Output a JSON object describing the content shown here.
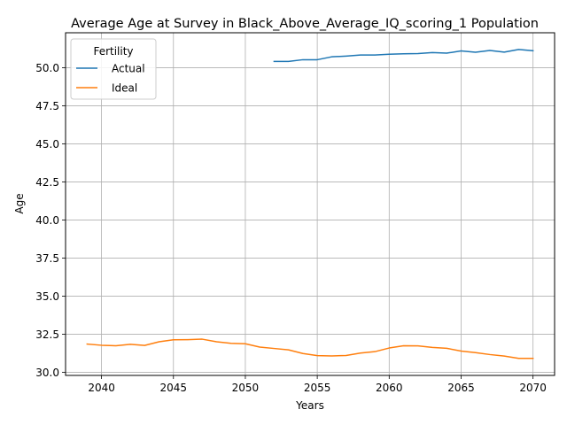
{
  "chart_data": {
    "type": "line",
    "title": "Average Age at Survey in Black_Above_Average_IQ_scoring_1 Population",
    "xlabel": "Years",
    "ylabel": "Age",
    "xlim": [
      2037.5,
      2071.5
    ],
    "ylim": [
      29.8,
      52.3
    ],
    "x_ticks": [
      2040,
      2045,
      2050,
      2055,
      2060,
      2065,
      2070
    ],
    "y_ticks": [
      30.0,
      32.5,
      35.0,
      37.5,
      40.0,
      42.5,
      45.0,
      47.5,
      50.0
    ],
    "grid": true,
    "legend": {
      "title": "Fertility",
      "placement": "top-left"
    },
    "series": [
      {
        "name": "Actual",
        "color": "#1f77b4",
        "x": [
          2052,
          2053,
          2054,
          2055,
          2056,
          2057,
          2058,
          2059,
          2060,
          2061,
          2062,
          2063,
          2064,
          2065,
          2066,
          2067,
          2068,
          2069,
          2070
        ],
        "y": [
          50.42,
          50.42,
          50.53,
          50.53,
          50.72,
          50.77,
          50.84,
          50.84,
          50.89,
          50.92,
          50.93,
          51.0,
          50.96,
          51.11,
          51.02,
          51.14,
          51.03,
          51.2,
          51.12
        ]
      },
      {
        "name": "Ideal",
        "color": "#ff7f0e",
        "x": [
          2039,
          2040,
          2041,
          2042,
          2043,
          2044,
          2045,
          2046,
          2047,
          2048,
          2049,
          2050,
          2051,
          2052,
          2053,
          2054,
          2055,
          2056,
          2057,
          2058,
          2059,
          2060,
          2061,
          2062,
          2063,
          2064,
          2065,
          2066,
          2067,
          2068,
          2069,
          2070
        ],
        "y": [
          31.86,
          31.78,
          31.75,
          31.84,
          31.77,
          32.01,
          32.14,
          32.15,
          32.18,
          32.01,
          31.91,
          31.88,
          31.66,
          31.57,
          31.48,
          31.24,
          31.1,
          31.08,
          31.11,
          31.27,
          31.36,
          31.6,
          31.75,
          31.74,
          31.64,
          31.58,
          31.4,
          31.3,
          31.17,
          31.07,
          30.92,
          30.92
        ]
      }
    ]
  }
}
